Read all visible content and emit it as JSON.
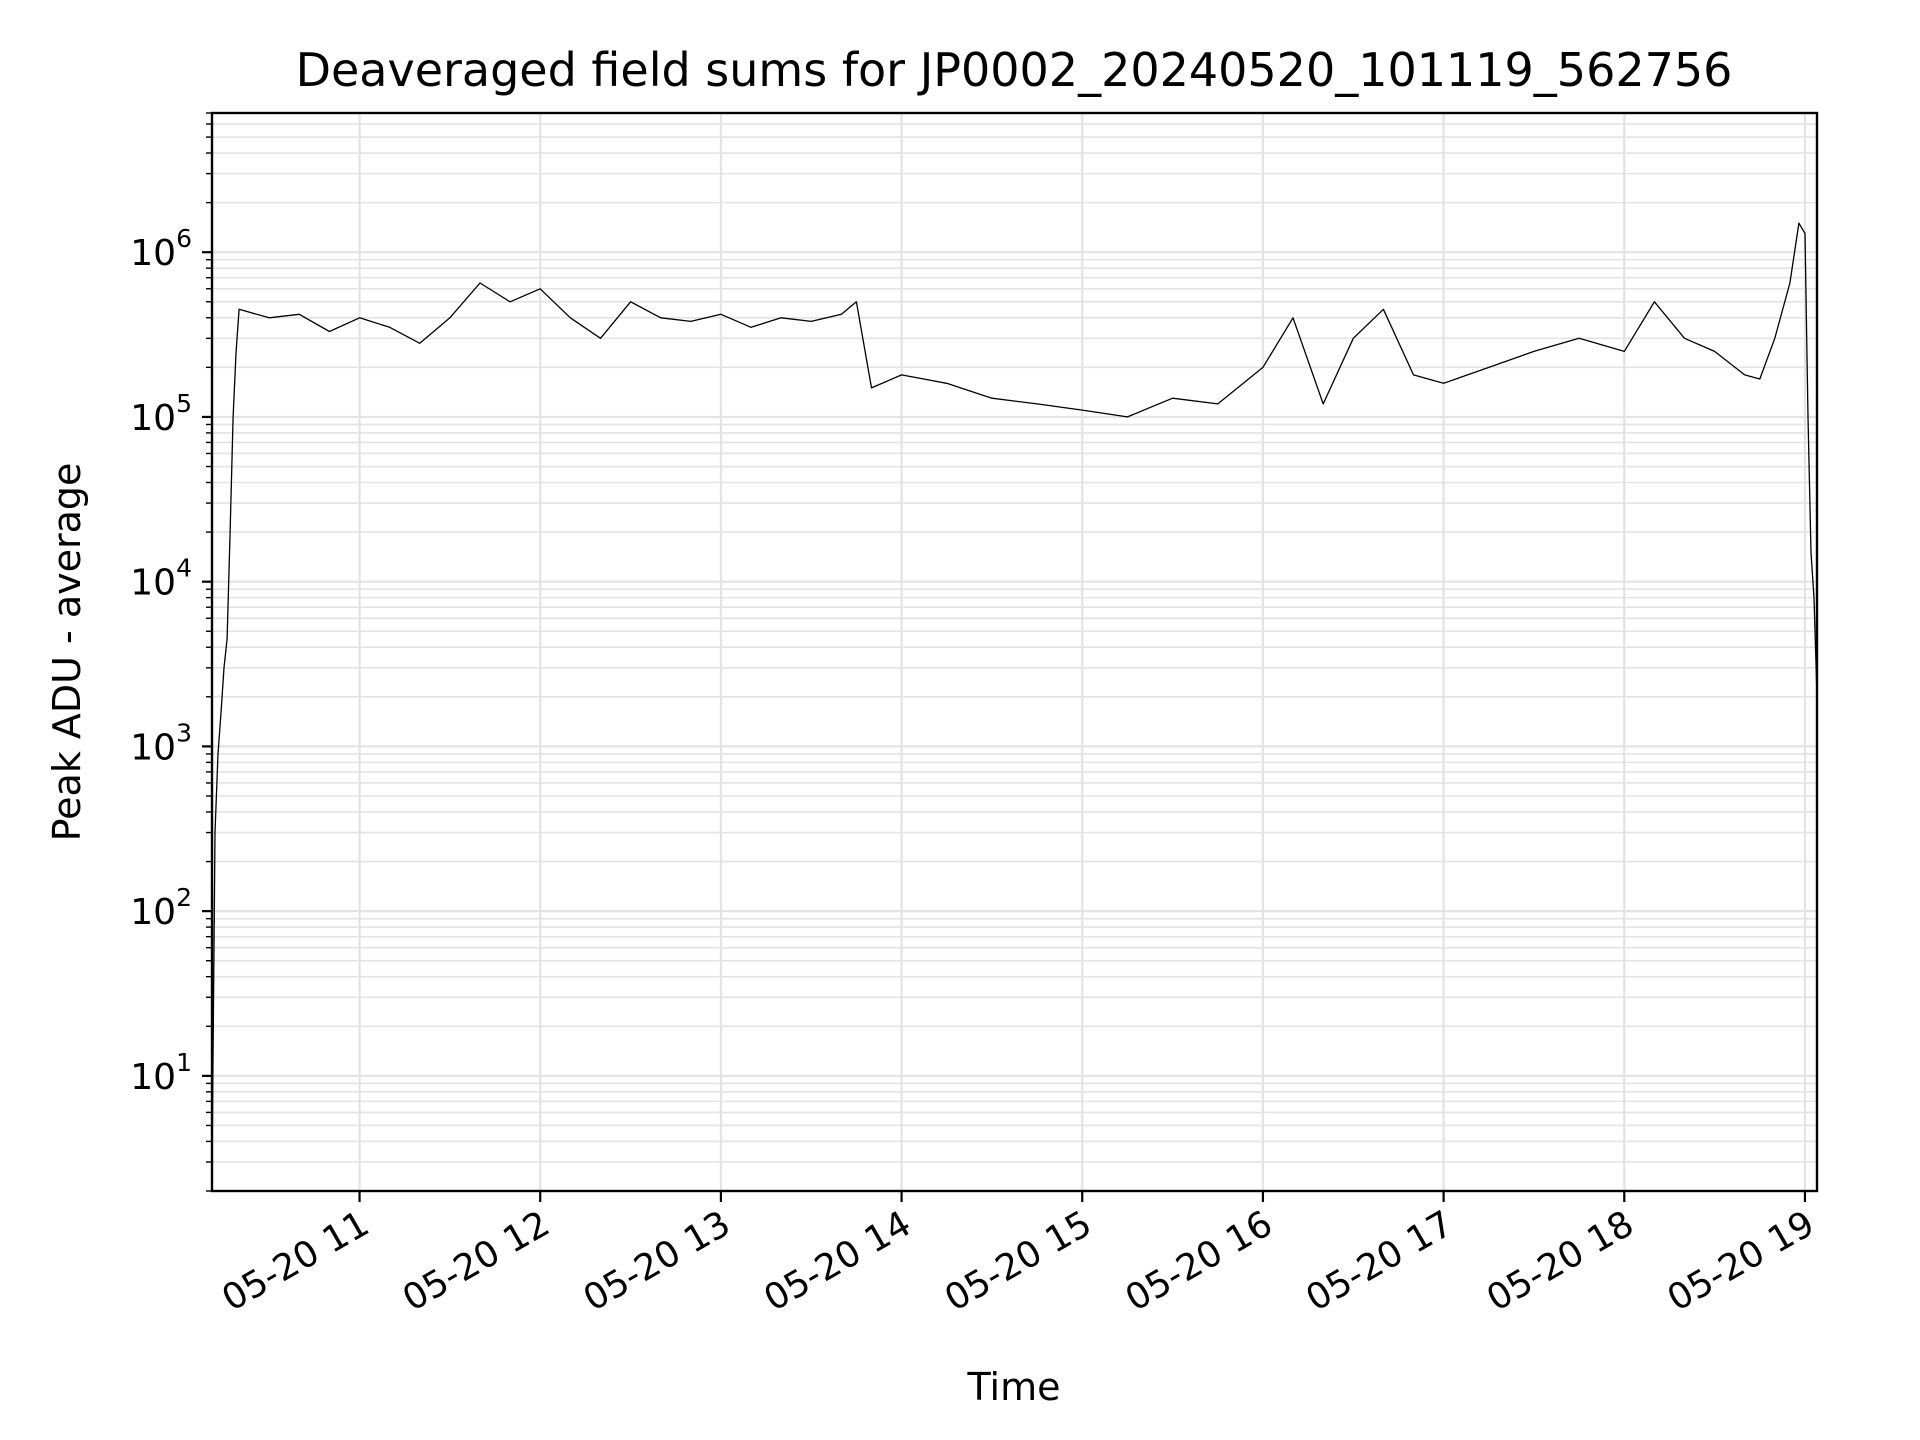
{
  "chart_data": {
    "type": "line",
    "title": "Deaveraged field sums for JP0002_20240520_101119_562756",
    "xlabel": "Time",
    "ylabel": "Peak ADU - average",
    "yscale": "log",
    "xlim": [
      "2024-05-20 10:11",
      "2024-05-20 19:04"
    ],
    "ylim": [
      2,
      7000000
    ],
    "grid": true,
    "line_color": "#000000",
    "grid_color": "#e3e3e3",
    "x_ticks": [
      {
        "value": "2024-05-20 11:00",
        "label": "05-20 11"
      },
      {
        "value": "2024-05-20 12:00",
        "label": "05-20 12"
      },
      {
        "value": "2024-05-20 13:00",
        "label": "05-20 13"
      },
      {
        "value": "2024-05-20 14:00",
        "label": "05-20 14"
      },
      {
        "value": "2024-05-20 15:00",
        "label": "05-20 15"
      },
      {
        "value": "2024-05-20 16:00",
        "label": "05-20 16"
      },
      {
        "value": "2024-05-20 17:00",
        "label": "05-20 17"
      },
      {
        "value": "2024-05-20 18:00",
        "label": "05-20 18"
      },
      {
        "value": "2024-05-20 19:00",
        "label": "05-20 19"
      }
    ],
    "y_ticks": [
      {
        "value": 10,
        "base": "10",
        "exp": "1"
      },
      {
        "value": 100,
        "base": "10",
        "exp": "2"
      },
      {
        "value": 1000,
        "base": "10",
        "exp": "3"
      },
      {
        "value": 10000,
        "base": "10",
        "exp": "4"
      },
      {
        "value": 100000,
        "base": "10",
        "exp": "5"
      },
      {
        "value": 1000000,
        "base": "10",
        "exp": "6"
      }
    ],
    "series": [
      {
        "x": [
          "2024-05-20 10:11",
          "2024-05-20 10:12",
          "2024-05-20 10:13",
          "2024-05-20 10:14",
          "2024-05-20 10:15",
          "2024-05-20 10:16",
          "2024-05-20 10:17",
          "2024-05-20 10:18",
          "2024-05-20 10:19",
          "2024-05-20 10:20",
          "2024-05-20 10:30",
          "2024-05-20 10:40",
          "2024-05-20 10:50",
          "2024-05-20 11:00",
          "2024-05-20 11:10",
          "2024-05-20 11:20",
          "2024-05-20 11:30",
          "2024-05-20 11:40",
          "2024-05-20 11:50",
          "2024-05-20 12:00",
          "2024-05-20 12:10",
          "2024-05-20 12:20",
          "2024-05-20 12:30",
          "2024-05-20 12:40",
          "2024-05-20 12:50",
          "2024-05-20 13:00",
          "2024-05-20 13:10",
          "2024-05-20 13:20",
          "2024-05-20 13:30",
          "2024-05-20 13:40",
          "2024-05-20 13:45",
          "2024-05-20 13:50",
          "2024-05-20 14:00",
          "2024-05-20 14:15",
          "2024-05-20 14:30",
          "2024-05-20 14:45",
          "2024-05-20 15:00",
          "2024-05-20 15:15",
          "2024-05-20 15:30",
          "2024-05-20 15:45",
          "2024-05-20 16:00",
          "2024-05-20 16:10",
          "2024-05-20 16:20",
          "2024-05-20 16:30",
          "2024-05-20 16:40",
          "2024-05-20 16:50",
          "2024-05-20 17:00",
          "2024-05-20 17:15",
          "2024-05-20 17:30",
          "2024-05-20 17:45",
          "2024-05-20 18:00",
          "2024-05-20 18:10",
          "2024-05-20 18:20",
          "2024-05-20 18:30",
          "2024-05-20 18:40",
          "2024-05-20 18:45",
          "2024-05-20 18:50",
          "2024-05-20 18:55",
          "2024-05-20 18:58",
          "2024-05-20 19:00",
          "2024-05-20 19:01",
          "2024-05-20 19:02",
          "2024-05-20 19:03",
          "2024-05-20 19:04"
        ],
        "y": [
          2.5,
          300,
          900,
          1600,
          3000,
          4500,
          20000,
          100000,
          250000,
          450000,
          400000,
          420000,
          330000,
          400000,
          350000,
          280000,
          400000,
          650000,
          500000,
          600000,
          400000,
          300000,
          500000,
          400000,
          380000,
          420000,
          350000,
          400000,
          380000,
          420000,
          500000,
          150000,
          180000,
          160000,
          130000,
          120000,
          110000,
          100000,
          130000,
          120000,
          200000,
          400000,
          120000,
          300000,
          450000,
          180000,
          160000,
          200000,
          250000,
          300000,
          250000,
          500000,
          300000,
          250000,
          180000,
          170000,
          300000,
          650000,
          1500000,
          1300000,
          100000,
          15000,
          8000,
          2000
        ]
      }
    ]
  }
}
